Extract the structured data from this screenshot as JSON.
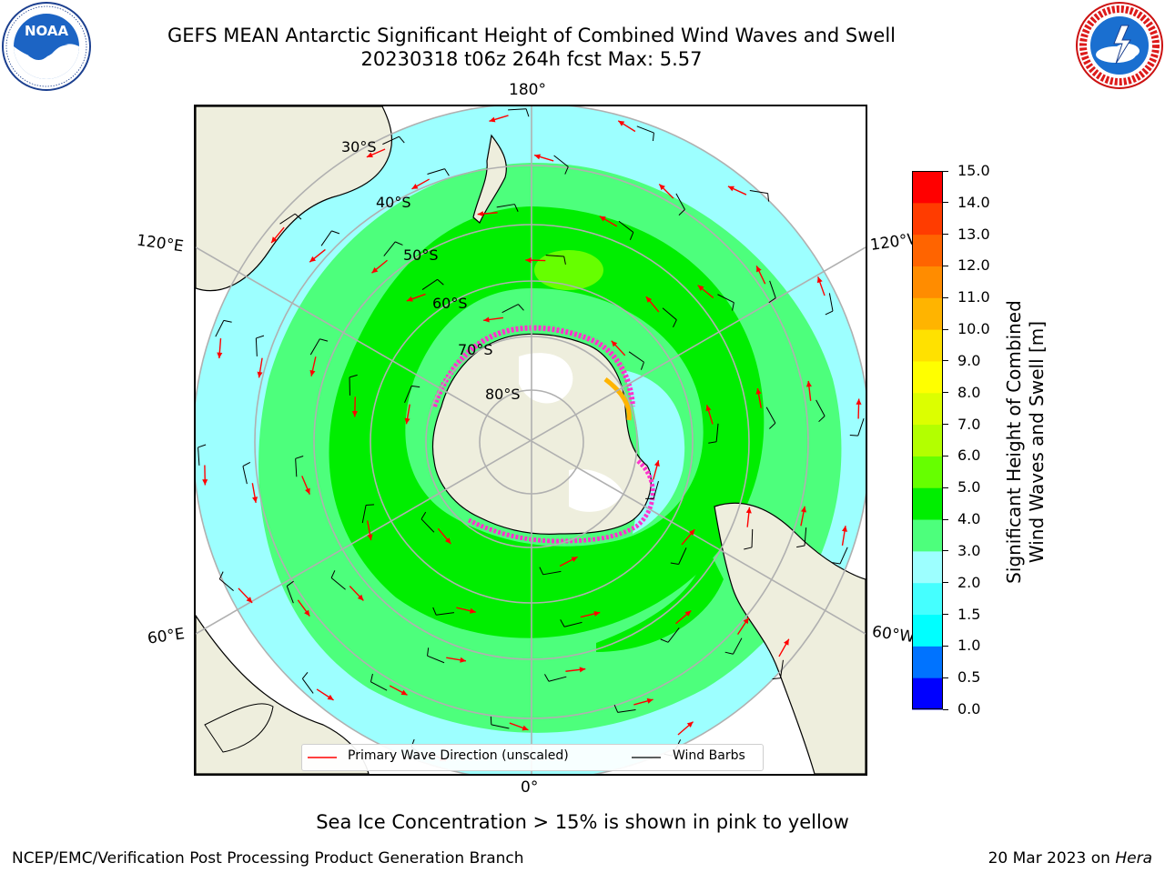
{
  "header": {
    "title_line1": "GEFS MEAN Antarctic Significant Height of Combined Wind Waves and Swell",
    "title_line2": "20230318 t06z 264h fcst   Max: 5.57"
  },
  "logos": {
    "noaa_text": "NOAA",
    "noaa_ring_text": "NATIONAL OCEANIC AND ATMOSPHERIC ADMINISTRATION · U.S. DEPARTMENT OF COMMERCE",
    "nws_ring_text": "NATIONAL WEATHER SERVICE"
  },
  "map": {
    "projection": "south polar stereographic",
    "lon_labels": {
      "top": "180°",
      "bottom": "0°",
      "upper_left": "120°E",
      "lower_left": "60°E",
      "upper_right": "120°W",
      "lower_right": "60°W"
    },
    "lat_labels": [
      "30°S",
      "40°S",
      "50°S",
      "60°S",
      "70°S",
      "80°S"
    ]
  },
  "legend": {
    "wave_label": "Primary Wave Direction (unscaled)",
    "barb_label": "Wind Barbs",
    "wave_color": "#ff0000",
    "barb_color": "#000000"
  },
  "colorbar": {
    "label_line1": "Significant Height of Combined",
    "label_line2": "Wind Waves and Swell [m]",
    "ticks": [
      "0.0",
      "0.5",
      "1.0",
      "1.5",
      "2.0",
      "3.0",
      "4.0",
      "5.0",
      "6.0",
      "7.0",
      "8.0",
      "9.0",
      "10.0",
      "11.0",
      "12.0",
      "13.0",
      "14.0",
      "15.0"
    ],
    "colors": [
      "#0000ff",
      "#0073ff",
      "#00ffff",
      "#45ffff",
      "#9dffff",
      "#4dff7c",
      "#00ee00",
      "#66ff00",
      "#b3ff00",
      "#dcff00",
      "#ffff00",
      "#ffe100",
      "#ffb400",
      "#ff8c00",
      "#ff6400",
      "#ff3c00",
      "#ff0000"
    ]
  },
  "notes": {
    "ice": "Sea Ice Concentration > 15% is shown in pink to yellow"
  },
  "footer": {
    "left": "NCEP/EMC/Verification Post Processing Product Generation Branch",
    "right_prefix": "20 Mar 2023 on ",
    "right_host": "Hera"
  }
}
